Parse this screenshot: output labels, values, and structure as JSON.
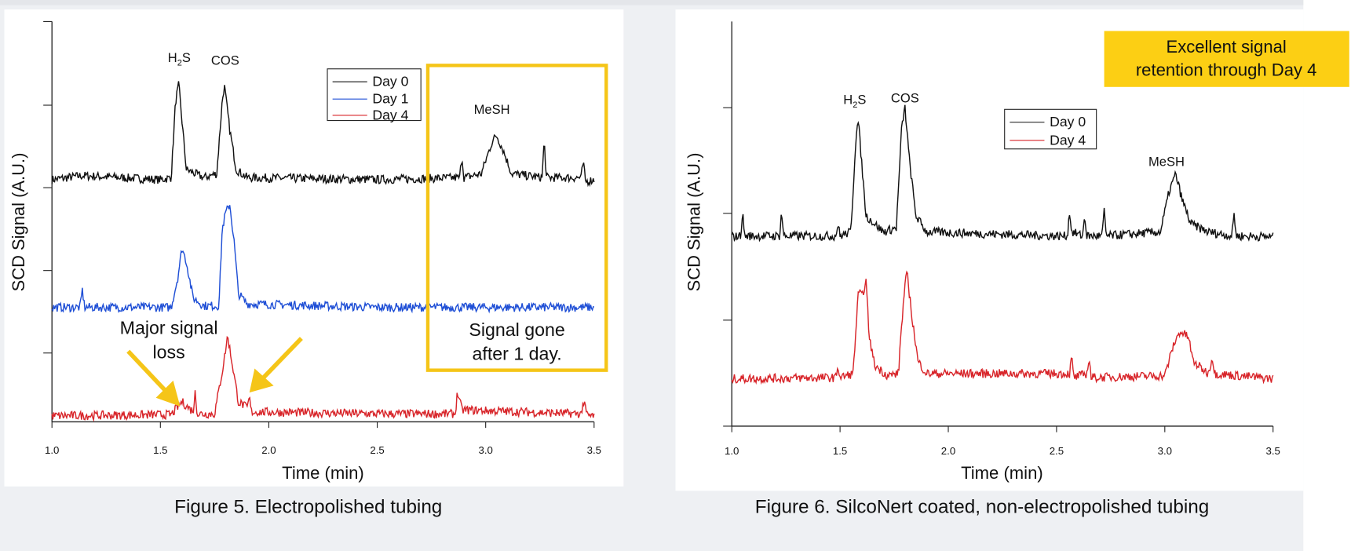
{
  "colors": {
    "panel_bg": "#eef0f3",
    "highlight": "#f5c518",
    "highlight_fill": "#fccf14",
    "day0": "#111111",
    "day1": "#1f4fd6",
    "day4": "#d8252a"
  },
  "chart_data": [
    {
      "type": "line",
      "caption": "Figure 5. Electropolished tubing",
      "xlabel": "Time (min)",
      "ylabel": "SCD Signal (A.U.)",
      "xlim": [
        1.0,
        3.5
      ],
      "ylim": [
        0,
        100
      ],
      "xticks": [
        "1.0",
        "1.5",
        "2.0",
        "2.5",
        "3.0",
        "3.5"
      ],
      "yticks_unlabeled": [
        17.2,
        37.8,
        58.5,
        79.1,
        100
      ],
      "legend": "top-center",
      "series": [
        {
          "name": "Day 0",
          "color": "#111111",
          "points": [
            [
              1.0,
              60.5
            ],
            [
              1.14,
              61.5
            ],
            [
              1.5,
              60.5
            ],
            [
              1.55,
              61
            ],
            [
              1.57,
              80
            ],
            [
              1.585,
              84.3
            ],
            [
              1.6,
              75
            ],
            [
              1.62,
              63
            ],
            [
              1.7,
              61
            ],
            [
              1.76,
              62
            ],
            [
              1.785,
              80
            ],
            [
              1.795,
              84
            ],
            [
              1.82,
              73
            ],
            [
              1.85,
              63
            ],
            [
              1.9,
              61
            ],
            [
              2.5,
              60.5
            ],
            [
              2.88,
              61
            ],
            [
              2.89,
              66.5
            ],
            [
              2.9,
              61
            ],
            [
              2.98,
              62
            ],
            [
              3.03,
              70
            ],
            [
              3.05,
              71.6
            ],
            [
              3.08,
              68
            ],
            [
              3.12,
              62
            ],
            [
              3.26,
              61
            ],
            [
              3.27,
              70.3
            ],
            [
              3.28,
              61
            ],
            [
              3.44,
              61
            ],
            [
              3.45,
              65
            ],
            [
              3.46,
              60
            ],
            [
              3.5,
              60.5
            ]
          ]
        },
        {
          "name": "Day 1",
          "color": "#1f4fd6",
          "points": [
            [
              1.0,
              28.6
            ],
            [
              1.13,
              28.6
            ],
            [
              1.14,
              33
            ],
            [
              1.15,
              28.6
            ],
            [
              1.55,
              28.6
            ],
            [
              1.58,
              36
            ],
            [
              1.6,
              43.4
            ],
            [
              1.62,
              40
            ],
            [
              1.65,
              31
            ],
            [
              1.7,
              29
            ],
            [
              1.77,
              29
            ],
            [
              1.785,
              48
            ],
            [
              1.8,
              52
            ],
            [
              1.82,
              54.4
            ],
            [
              1.84,
              45
            ],
            [
              1.86,
              32
            ],
            [
              1.9,
              29.5
            ],
            [
              2.5,
              28.6
            ],
            [
              3.5,
              28.6
            ]
          ]
        },
        {
          "name": "Day 4",
          "color": "#d8252a",
          "points": [
            [
              1.0,
              1.5
            ],
            [
              1.55,
              1.8
            ],
            [
              1.6,
              5
            ],
            [
              1.64,
              3
            ],
            [
              1.655,
              3
            ],
            [
              1.66,
              8
            ],
            [
              1.67,
              2
            ],
            [
              1.75,
              2
            ],
            [
              1.79,
              14
            ],
            [
              1.81,
              21.5
            ],
            [
              1.83,
              15
            ],
            [
              1.86,
              5
            ],
            [
              1.9,
              3.5
            ],
            [
              1.91,
              6
            ],
            [
              1.92,
              2.5
            ],
            [
              2.5,
              2
            ],
            [
              2.86,
              2
            ],
            [
              2.87,
              7.5
            ],
            [
              2.89,
              3
            ],
            [
              3.44,
              2
            ],
            [
              3.45,
              5
            ],
            [
              3.47,
              1.5
            ],
            [
              3.5,
              1.5
            ]
          ]
        }
      ],
      "annotations": {
        "peaks": {
          "h2s": "H",
          "h2s_sub": "2",
          "h2s_end": "S",
          "cos": "COS",
          "mesh": "MeSH"
        },
        "loss_line1": "Major signal",
        "loss_line2": "loss",
        "gone_line1": "Signal gone",
        "gone_line2": "after 1 day."
      }
    },
    {
      "type": "line",
      "caption": "Figure 6. SilcoNert coated, non-electropolished tubing",
      "xlabel": "Time (min)",
      "ylabel": "SCD Signal (A.U.)",
      "xlim": [
        1.0,
        3.5
      ],
      "ylim": [
        0,
        100
      ],
      "xticks": [
        "1.0",
        "1.5",
        "2.0",
        "2.5",
        "3.0",
        "3.5"
      ],
      "yticks_unlabeled": [
        0,
        26.2,
        52.6,
        78.7
      ],
      "legend": "top-center",
      "series": [
        {
          "name": "Day 0",
          "color": "#111111",
          "points": [
            [
              1.0,
              46.8
            ],
            [
              1.04,
              47
            ],
            [
              1.05,
              52.6
            ],
            [
              1.06,
              47
            ],
            [
              1.22,
              47
            ],
            [
              1.23,
              53
            ],
            [
              1.24,
              47
            ],
            [
              1.48,
              47
            ],
            [
              1.49,
              50
            ],
            [
              1.5,
              47
            ],
            [
              1.55,
              48
            ],
            [
              1.575,
              73
            ],
            [
              1.585,
              75.1
            ],
            [
              1.6,
              65
            ],
            [
              1.62,
              52
            ],
            [
              1.7,
              48
            ],
            [
              1.76,
              49
            ],
            [
              1.785,
              74
            ],
            [
              1.8,
              78.7
            ],
            [
              1.82,
              66
            ],
            [
              1.85,
              52
            ],
            [
              1.9,
              48
            ],
            [
              2.5,
              47
            ],
            [
              2.55,
              47
            ],
            [
              2.56,
              53
            ],
            [
              2.57,
              48
            ],
            [
              2.62,
              47
            ],
            [
              2.63,
              52
            ],
            [
              2.64,
              47
            ],
            [
              2.71,
              47
            ],
            [
              2.72,
              53
            ],
            [
              2.73,
              47
            ],
            [
              2.98,
              48
            ],
            [
              3.02,
              58
            ],
            [
              3.05,
              62.3
            ],
            [
              3.08,
              56
            ],
            [
              3.12,
              50
            ],
            [
              3.2,
              48
            ],
            [
              3.31,
              47
            ],
            [
              3.32,
              52.6
            ],
            [
              3.33,
              47
            ],
            [
              3.5,
              46.8
            ]
          ]
        },
        {
          "name": "Day 4",
          "color": "#d8252a",
          "points": [
            [
              1.0,
              11.7
            ],
            [
              1.48,
              12
            ],
            [
              1.49,
              15
            ],
            [
              1.5,
              12
            ],
            [
              1.56,
              13
            ],
            [
              1.585,
              33.3
            ],
            [
              1.6,
              32
            ],
            [
              1.62,
              35.7
            ],
            [
              1.635,
              22
            ],
            [
              1.66,
              15
            ],
            [
              1.72,
              12.5
            ],
            [
              1.77,
              13
            ],
            [
              1.78,
              22
            ],
            [
              1.8,
              35
            ],
            [
              1.81,
              37.7
            ],
            [
              1.83,
              28
            ],
            [
              1.86,
              16
            ],
            [
              1.9,
              13
            ],
            [
              2.56,
              13
            ],
            [
              2.57,
              17
            ],
            [
              2.58,
              12
            ],
            [
              2.64,
              13
            ],
            [
              2.65,
              17
            ],
            [
              2.66,
              12
            ],
            [
              3.0,
              12.5
            ],
            [
              3.04,
              20
            ],
            [
              3.07,
              23.4
            ],
            [
              3.11,
              22
            ],
            [
              3.13,
              16
            ],
            [
              3.2,
              13
            ],
            [
              3.22,
              17
            ],
            [
              3.23,
              13
            ],
            [
              3.5,
              11.7
            ]
          ]
        }
      ],
      "annotations": {
        "peaks": {
          "h2s": "H",
          "h2s_sub": "2",
          "h2s_end": "S",
          "cos": "COS",
          "mesh": "MeSH"
        },
        "retention_line1": "Excellent signal",
        "retention_line2": "retention through Day 4"
      }
    }
  ]
}
